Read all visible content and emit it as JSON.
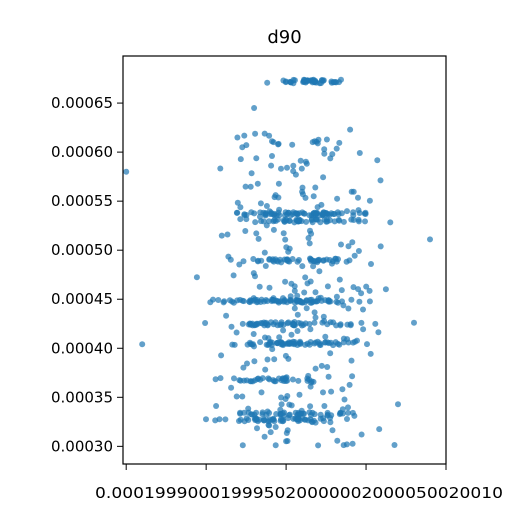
{
  "chart_data": {
    "type": "scatter",
    "title": "d90",
    "xlabel": "",
    "ylabel": "",
    "xlim": [
      0.00019898,
      0.000201
    ],
    "ylim": [
      0.000282,
      0.000698
    ],
    "x_ticks": [
      "0.000199",
      "0.0001995",
      "0.0002",
      "0.0002005",
      "0.000201"
    ],
    "x_tick_labels": [
      "0.000199",
      "0.0001995",
      "0.0002",
      "0.0002005",
      "0.000201"
    ],
    "x_ticks_display": "0.000199900019995020000002000050020010",
    "y_ticks": [
      0.0003,
      0.00035,
      0.0004,
      0.00045,
      0.0005,
      0.00055,
      0.0006,
      0.00065
    ],
    "y_tick_labels": [
      "0.00030",
      "0.00035",
      "0.00040",
      "0.00045",
      "0.00050",
      "0.00055",
      "0.00060",
      "0.00065"
    ],
    "grid": false,
    "marker_color": "#1f77b4",
    "series": [
      {
        "clusters": [
          {
            "y": 0.000672,
            "x_range": [
              0.0001998,
              0.0002005
            ],
            "n": 45
          },
          {
            "y": 0.000537,
            "x_range": [
              0.0001995,
              0.0002007
            ],
            "n": 70
          },
          {
            "y": 0.00053,
            "x_range": [
              0.0001995,
              0.0002007
            ],
            "n": 50
          },
          {
            "y": 0.00049,
            "x_range": [
              0.0001996,
              0.0002006
            ],
            "n": 45
          },
          {
            "y": 0.000448,
            "x_range": [
              0.0001994,
              0.0002006
            ],
            "n": 80
          },
          {
            "y": 0.000425,
            "x_range": [
              0.0001994,
              0.0002006
            ],
            "n": 55
          },
          {
            "y": 0.000405,
            "x_range": [
              0.0001995,
              0.0002006
            ],
            "n": 60
          },
          {
            "y": 0.000368,
            "x_range": [
              0.0001994,
              0.0002004
            ],
            "n": 35
          },
          {
            "y": 0.000333,
            "x_range": [
              0.0001995,
              0.0002006
            ],
            "n": 40
          },
          {
            "y": 0.000327,
            "x_range": [
              0.0001993,
              0.0002006
            ],
            "n": 50
          }
        ],
        "scatter_fill": {
          "y_range": [
            0.0003,
            0.00062
          ],
          "x_range": [
            0.0001993,
            0.0002008
          ],
          "n": 260
        },
        "outliers": [
          {
            "x": 0.000199,
            "y": 0.00058
          },
          {
            "x": 0.0001991,
            "y": 0.000404
          },
          {
            "x": 0.0002009,
            "y": 0.000511
          },
          {
            "x": 0.0002008,
            "y": 0.000426
          },
          {
            "x": 0.0002007,
            "y": 0.000343
          },
          {
            "x": 0.0001998,
            "y": 0.000645
          },
          {
            "x": 0.0002004,
            "y": 0.000623
          }
        ]
      }
    ]
  }
}
